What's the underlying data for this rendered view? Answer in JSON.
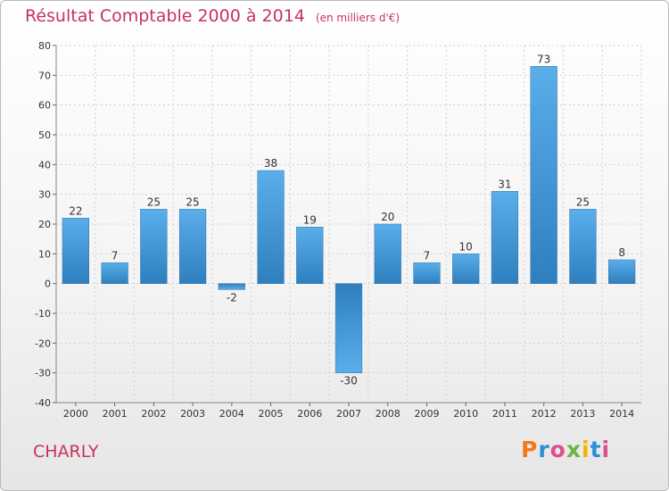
{
  "header": {
    "title": "Résultat Comptable 2000 à 2014",
    "unit": "(en milliers d'€)"
  },
  "footer": {
    "commune": "CHARLY",
    "logo_text": "Proxiti",
    "logo_colors": [
      "#f07a1a",
      "#2c8fd6",
      "#e04e8c",
      "#6cb33f",
      "#f0b400",
      "#2c8fd6",
      "#e04e8c"
    ]
  },
  "colors": {
    "title": "#c8325a",
    "bar_light": "#5aaeea",
    "bar_dark": "#2f7fbf",
    "grid": "#d0d0d0",
    "axis_text": "#333333"
  },
  "chart_data": {
    "type": "bar",
    "title": "Résultat Comptable 2000 à 2014",
    "xlabel": "",
    "ylabel": "",
    "categories": [
      "2000",
      "2001",
      "2002",
      "2003",
      "2004",
      "2005",
      "2006",
      "2007",
      "2008",
      "2009",
      "2010",
      "2011",
      "2012",
      "2013",
      "2014"
    ],
    "values": [
      22,
      7,
      25,
      25,
      -2,
      38,
      19,
      -30,
      20,
      7,
      10,
      31,
      73,
      25,
      8
    ],
    "ylim": [
      -40,
      80
    ],
    "yticks": [
      80,
      70,
      60,
      50,
      40,
      30,
      20,
      10,
      0,
      -10,
      -20,
      -30,
      -40
    ],
    "grid": true,
    "legend": "none"
  }
}
